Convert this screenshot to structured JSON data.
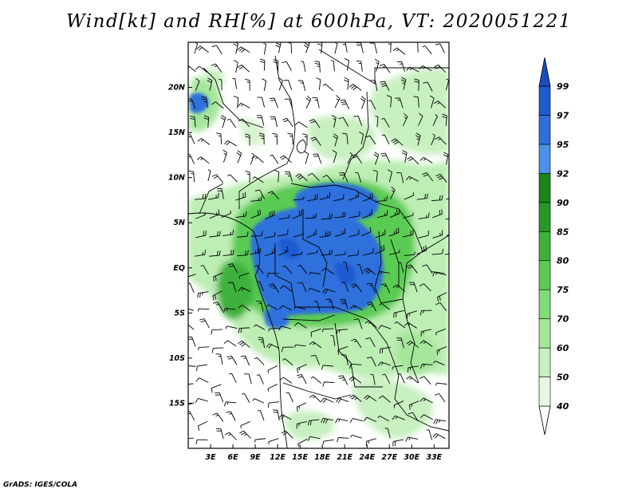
{
  "title": "Wind[kt] and RH[%] at 600hPa, VT: 2020051221",
  "credit": "GrADS: IGES/COLA",
  "map": {
    "region": "Central Africa",
    "lon_range_deg": [
      0,
      35
    ],
    "lat_range_deg": [
      -20,
      25
    ],
    "lat_labels": [
      "20N",
      "15N",
      "10N",
      "5N",
      "EQ",
      "5S",
      "10S",
      "15S"
    ],
    "lat_values": [
      20,
      15,
      10,
      5,
      0,
      -5,
      -10,
      -15
    ],
    "lon_labels": [
      "3E",
      "6E",
      "9E",
      "12E",
      "15E",
      "18E",
      "21E",
      "24E",
      "27E",
      "30E",
      "33E"
    ],
    "lon_values": [
      3,
      6,
      9,
      12,
      15,
      18,
      21,
      24,
      27,
      30,
      33
    ]
  },
  "colorbar": {
    "levels": [
      "40",
      "50",
      "60",
      "70",
      "75",
      "80",
      "85",
      "90",
      "92",
      "95",
      "97",
      "99"
    ],
    "colors": [
      "#ffffff",
      "#e6f7e2",
      "#c8f0c0",
      "#a4e69a",
      "#7fdc76",
      "#5acb52",
      "#3cb13a",
      "#259924",
      "#188718",
      "#4a90e8",
      "#2f6fdc",
      "#1f5bd0",
      "#1a4cc0"
    ]
  },
  "legend_colors": {
    "wet_blue": "#2f6fdc",
    "green": "#3cb13a"
  }
}
